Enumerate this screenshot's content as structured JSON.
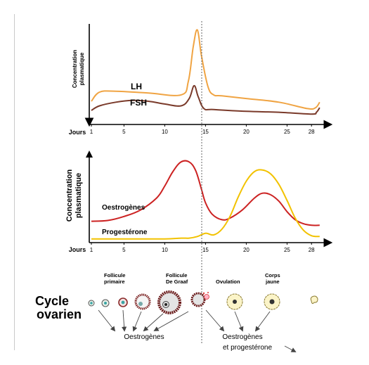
{
  "colors": {
    "lh": "#F0A443",
    "fsh": "#7A3A2A",
    "oestrogenes": "#CC2222",
    "progesterone": "#F2C200",
    "axis": "#000000",
    "dashed": "#777777"
  },
  "top_chart": {
    "ylabel_line1": "Concentration",
    "ylabel_line2": "plasmatique",
    "xaxis_title": "Jours",
    "series_labels": {
      "lh": "LH",
      "fsh": "FSH"
    }
  },
  "bottom_chart": {
    "ylabel_line1": "Concentration",
    "ylabel_line2": "plasmatique",
    "xaxis_title": "Jours",
    "series_labels": {
      "oestrogenes": "Oestrogènes",
      "progesterone": "Progestérone"
    }
  },
  "ticks": [
    1,
    5,
    10,
    15,
    20,
    25,
    28
  ],
  "chart_data": [
    {
      "type": "line",
      "xlabel": "Jours",
      "ylabel": "Concentration plasmatique",
      "xlim": [
        1,
        29
      ],
      "ylim": [
        0,
        10
      ],
      "series": [
        {
          "name": "LH",
          "x": [
            1,
            2,
            4,
            8,
            12,
            12.9,
            13.5,
            14,
            14.5,
            15.3,
            16,
            17,
            20,
            24,
            27.5,
            28.5,
            29
          ],
          "y": [
            2.0,
            3.0,
            3.1,
            2.9,
            2.7,
            4.2,
            8.0,
            9.8,
            7.0,
            3.6,
            2.7,
            2.6,
            2.3,
            1.9,
            1.2,
            1.3,
            1.9
          ]
        },
        {
          "name": "FSH",
          "x": [
            1,
            2,
            4,
            6,
            8,
            10,
            12,
            13,
            13.6,
            14.1,
            14.8,
            16,
            20,
            24,
            28,
            28.6,
            29
          ],
          "y": [
            1.0,
            1.5,
            1.9,
            2.1,
            2.0,
            1.7,
            1.5,
            2.3,
            3.7,
            2.5,
            1.2,
            1.1,
            0.9,
            0.8,
            0.6,
            0.8,
            1.3
          ]
        }
      ]
    },
    {
      "type": "line",
      "xlabel": "Jours",
      "ylabel": "Concentration plasmatique",
      "xlim": [
        1,
        29
      ],
      "ylim": [
        0,
        10
      ],
      "series": [
        {
          "name": "Oestrogènes",
          "x": [
            1,
            3,
            5,
            7,
            9,
            10,
            11,
            12,
            13,
            13.8,
            14.5,
            15,
            15.8,
            17,
            18,
            19.5,
            21,
            22,
            23,
            24,
            25,
            26,
            27,
            28,
            29
          ],
          "y": [
            2.4,
            2.5,
            3.0,
            3.8,
            5.3,
            6.8,
            8.6,
            9.8,
            9.8,
            8.7,
            6.4,
            4.7,
            3.3,
            2.6,
            2.8,
            3.8,
            5.3,
            5.9,
            5.7,
            4.9,
            3.6,
            2.6,
            2.1,
            1.9,
            1.9
          ]
        },
        {
          "name": "Progestérone",
          "x": [
            1,
            6,
            10,
            12,
            13,
            14,
            15,
            16,
            17,
            18,
            19,
            20,
            21,
            22,
            23,
            24,
            25,
            26,
            27,
            28,
            29
          ],
          "y": [
            0.2,
            0.2,
            0.2,
            0.3,
            0.3,
            0.5,
            0.9,
            0.7,
            1.4,
            3.0,
            5.4,
            7.4,
            8.6,
            8.8,
            8.3,
            7.0,
            5.0,
            2.8,
            1.3,
            0.6,
            0.5
          ]
        }
      ]
    }
  ],
  "ovarian": {
    "title_line1": "Cycle",
    "title_line2": "ovarien",
    "label_follicule_primaire_1": "Follicule",
    "label_follicule_primaire_2": "primaire",
    "label_follicule_graaf_1": "Follicule",
    "label_follicule_graaf_2": "De Graaf",
    "label_ovulation": "Ovulation",
    "label_corps_jaune_1": "Corps",
    "label_corps_jaune_2": "jaune",
    "hormone_left": "Oestrogènes",
    "hormone_right_1": "Oestrogènes",
    "hormone_right_2": "et progestérone"
  }
}
